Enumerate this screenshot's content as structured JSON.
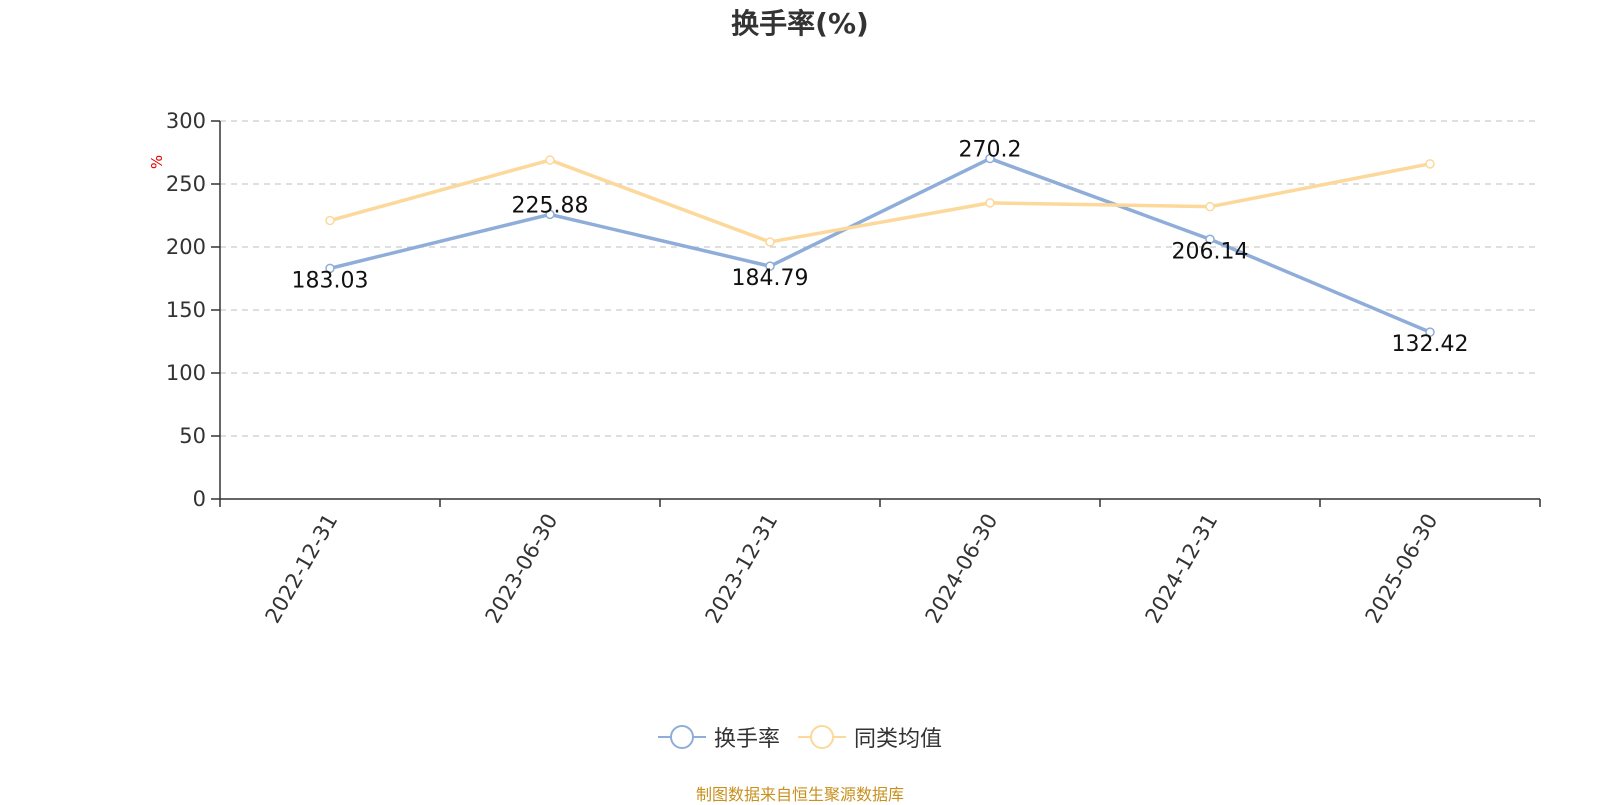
{
  "title": "换手率(%)",
  "source": "制图数据来自恒生聚源数据库",
  "colors": {
    "series1": "#8eadd9",
    "series2": "#fcd89a",
    "grid": "#cccccc",
    "axis": "#333333",
    "unit": "#e60000",
    "source": "#c8901e"
  },
  "chart_data": {
    "type": "line",
    "ylabel": "%",
    "ylim": [
      0,
      300
    ],
    "yticks": [
      "0",
      "50",
      "100",
      "150",
      "200",
      "250",
      "300"
    ],
    "grid": true,
    "legend": "bottom",
    "categories": [
      "2022-12-31",
      "2023-06-30",
      "2023-12-31",
      "2024-06-30",
      "2024-12-31",
      "2025-06-30"
    ],
    "series": [
      {
        "name": "换手率",
        "values": [
          183.03,
          225.88,
          184.79,
          270.2,
          206.14,
          132.42
        ],
        "labels": [
          "183.03",
          "225.88",
          "184.79",
          "270.2",
          "206.14",
          "132.42"
        ]
      },
      {
        "name": "同类均值",
        "values": [
          221,
          269,
          204,
          235,
          232,
          266
        ]
      }
    ]
  }
}
